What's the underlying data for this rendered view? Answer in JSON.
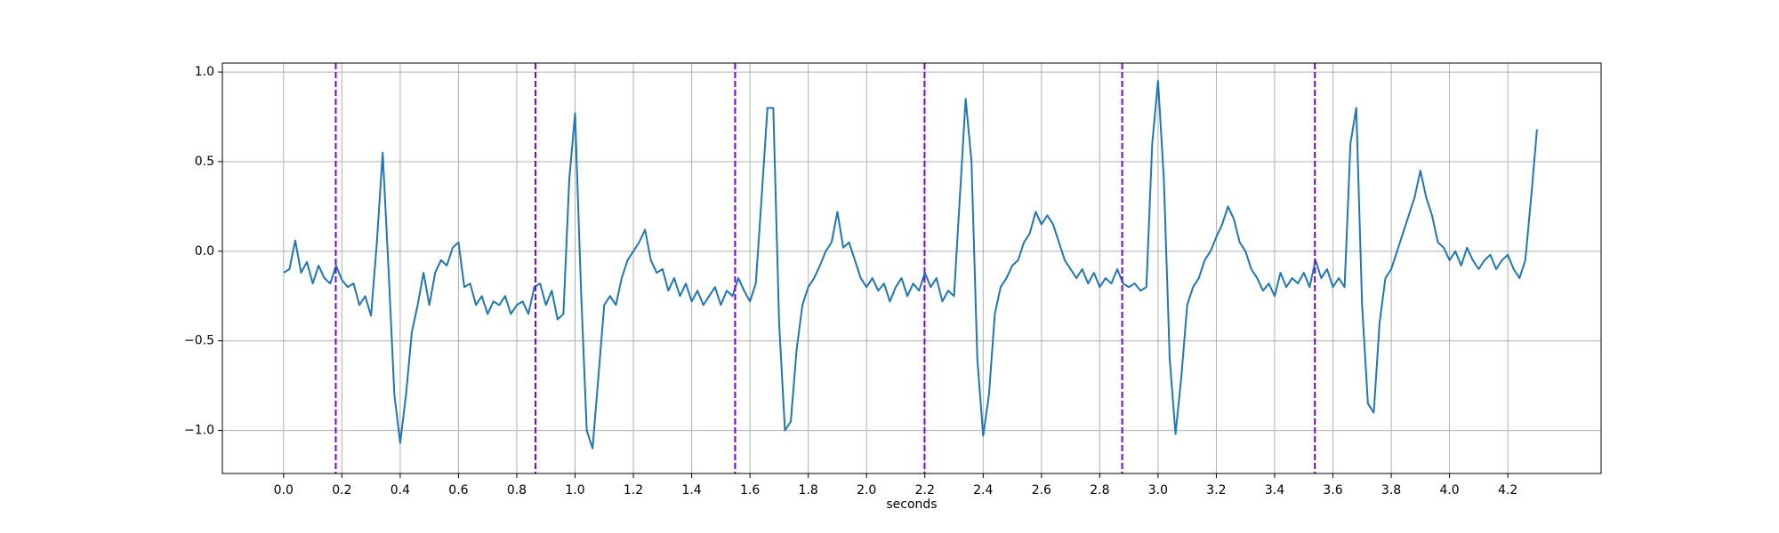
{
  "chart_data": {
    "type": "line",
    "x_label": "seconds",
    "grid": true,
    "color": "#1f77b4",
    "vlines": [
      0.179,
      0.864,
      1.549,
      2.199,
      2.877,
      3.538
    ],
    "vline_color": "#7b00e0",
    "xlim": [
      -0.21,
      4.52
    ],
    "ylim": [
      -1.24,
      1.05
    ],
    "xticks": [
      {
        "value": 0,
        "label": "0.0"
      },
      0.2,
      0.4,
      0.6,
      0.8,
      {
        "value": 1,
        "label": "1.0"
      },
      1.2,
      1.4,
      1.6,
      1.8,
      {
        "value": 2,
        "label": "2.0"
      },
      2.2,
      2.4,
      2.6,
      2.8,
      {
        "value": 3,
        "label": "3.0"
      },
      3.2,
      3.4,
      3.6,
      3.8,
      {
        "value": 4,
        "label": "4.0"
      },
      4.2
    ],
    "yticks": [
      {
        "value": -1,
        "label": "−1.0"
      },
      {
        "value": -0.5,
        "label": "−0.5"
      },
      {
        "value": 0,
        "label": "0.0"
      },
      0.5,
      {
        "value": 1,
        "label": "1.0"
      }
    ],
    "x": [
      0,
      0.02,
      0.04,
      0.06,
      0.08,
      0.1,
      0.12,
      0.14,
      0.16,
      0.18,
      0.2,
      0.22,
      0.24,
      0.26,
      0.28,
      0.3,
      0.32,
      0.34,
      0.36,
      0.38,
      0.4,
      0.42,
      0.44,
      0.46,
      0.48,
      0.5,
      0.52,
      0.54,
      0.56,
      0.58,
      0.6,
      0.62,
      0.64,
      0.66,
      0.68,
      0.7,
      0.72,
      0.74,
      0.76,
      0.78,
      0.8,
      0.82,
      0.84,
      0.86,
      0.88,
      0.9,
      0.92,
      0.94,
      0.96,
      0.98,
      1,
      1.02,
      1.04,
      1.06,
      1.08,
      1.1,
      1.12,
      1.14,
      1.16,
      1.18,
      1.2,
      1.22,
      1.24,
      1.26,
      1.28,
      1.3,
      1.32,
      1.34,
      1.36,
      1.38,
      1.4,
      1.42,
      1.44,
      1.46,
      1.48,
      1.5,
      1.52,
      1.54,
      1.56,
      1.58,
      1.6,
      1.62,
      1.64,
      1.66,
      1.68,
      1.7,
      1.72,
      1.74,
      1.76,
      1.78,
      1.8,
      1.82,
      1.84,
      1.86,
      1.88,
      1.9,
      1.92,
      1.94,
      1.96,
      1.98,
      2,
      2.02,
      2.04,
      2.06,
      2.08,
      2.1,
      2.12,
      2.14,
      2.16,
      2.18,
      2.2,
      2.22,
      2.24,
      2.26,
      2.28,
      2.3,
      2.32,
      2.34,
      2.36,
      2.38,
      2.4,
      2.42,
      2.44,
      2.46,
      2.48,
      2.5,
      2.52,
      2.54,
      2.56,
      2.58,
      2.6,
      2.62,
      2.64,
      2.66,
      2.68,
      2.7,
      2.72,
      2.74,
      2.76,
      2.78,
      2.8,
      2.82,
      2.84,
      2.86,
      2.88,
      2.9,
      2.92,
      2.94,
      2.96,
      2.98,
      3,
      3.02,
      3.04,
      3.06,
      3.08,
      3.1,
      3.12,
      3.14,
      3.16,
      3.18,
      3.2,
      3.22,
      3.24,
      3.26,
      3.28,
      3.3,
      3.32,
      3.34,
      3.36,
      3.38,
      3.4,
      3.42,
      3.44,
      3.46,
      3.48,
      3.5,
      3.52,
      3.54,
      3.56,
      3.58,
      3.6,
      3.62,
      3.64,
      3.66,
      3.68,
      3.7,
      3.72,
      3.74,
      3.76,
      3.78,
      3.8,
      3.82,
      3.84,
      3.86,
      3.88,
      3.9,
      3.92,
      3.94,
      3.96,
      3.98,
      4,
      4.02,
      4.04,
      4.06,
      4.08,
      4.1,
      4.12,
      4.14,
      4.16,
      4.18,
      4.2,
      4.22,
      4.24,
      4.26,
      4.28,
      4.3
    ],
    "values": [
      -0.12,
      -0.1,
      0.06,
      -0.12,
      -0.06,
      -0.18,
      -0.08,
      -0.15,
      -0.18,
      -0.08,
      -0.16,
      -0.2,
      -0.18,
      -0.3,
      -0.25,
      -0.36,
      0.05,
      0.55,
      -0.1,
      -0.8,
      -1.07,
      -0.8,
      -0.45,
      -0.3,
      -0.12,
      -0.3,
      -0.12,
      -0.05,
      -0.08,
      0.02,
      0.05,
      -0.2,
      -0.18,
      -0.3,
      -0.25,
      -0.35,
      -0.28,
      -0.3,
      -0.25,
      -0.35,
      -0.3,
      -0.28,
      -0.35,
      -0.2,
      -0.18,
      -0.3,
      -0.22,
      -0.38,
      -0.35,
      0.4,
      0.77,
      -0.2,
      -1,
      -1.1,
      -0.7,
      -0.3,
      -0.25,
      -0.3,
      -0.15,
      -0.05,
      0,
      0.05,
      0.12,
      -0.05,
      -0.12,
      -0.1,
      -0.22,
      -0.15,
      -0.25,
      -0.18,
      -0.28,
      -0.22,
      -0.3,
      -0.25,
      -0.2,
      -0.3,
      -0.22,
      -0.25,
      -0.15,
      -0.22,
      -0.28,
      -0.18,
      0.3,
      0.8,
      0.8,
      -0.4,
      -1,
      -0.95,
      -0.55,
      -0.3,
      -0.2,
      -0.15,
      -0.08,
      0,
      0.05,
      0.22,
      0.02,
      0.05,
      -0.05,
      -0.15,
      -0.2,
      -0.15,
      -0.22,
      -0.18,
      -0.28,
      -0.2,
      -0.15,
      -0.25,
      -0.18,
      -0.22,
      -0.12,
      -0.2,
      -0.15,
      -0.28,
      -0.22,
      -0.25,
      0.3,
      0.85,
      0.5,
      -0.6,
      -1.03,
      -0.8,
      -0.35,
      -0.2,
      -0.15,
      -0.08,
      -0.05,
      0.05,
      0.1,
      0.22,
      0.15,
      0.2,
      0.15,
      0.05,
      -0.05,
      -0.1,
      -0.15,
      -0.1,
      -0.18,
      -0.12,
      -0.2,
      -0.15,
      -0.18,
      -0.1,
      -0.18,
      -0.2,
      -0.18,
      -0.22,
      -0.2,
      0.6,
      0.95,
      0.4,
      -0.6,
      -1.02,
      -0.7,
      -0.3,
      -0.2,
      -0.15,
      -0.05,
      0,
      0.08,
      0.15,
      0.25,
      0.18,
      0.05,
      0,
      -0.1,
      -0.15,
      -0.22,
      -0.18,
      -0.25,
      -0.12,
      -0.2,
      -0.15,
      -0.18,
      -0.12,
      -0.2,
      -0.05,
      -0.15,
      -0.1,
      -0.2,
      -0.15,
      -0.2,
      0.6,
      0.8,
      -0.3,
      -0.85,
      -0.9,
      -0.4,
      -0.15,
      -0.1,
      0,
      0.1,
      0.2,
      0.3,
      0.45,
      0.3,
      0.2,
      0.05,
      0.02,
      -0.05,
      0,
      -0.08,
      0.02,
      -0.05,
      -0.1,
      -0.05,
      -0.02,
      -0.1,
      -0.05,
      -0.02,
      -0.1,
      -0.15,
      -0.05,
      0.3,
      0.68
    ]
  }
}
